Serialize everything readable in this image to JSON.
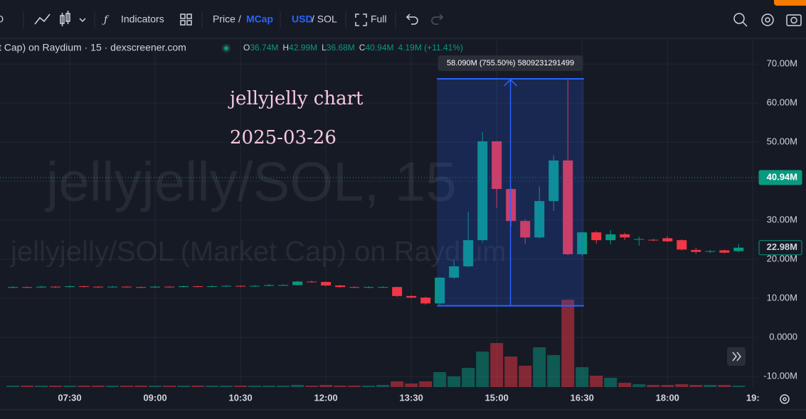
{
  "toolbar": {
    "interval": "D",
    "indicators": "Indicators",
    "price": "Price",
    "slash": "/",
    "mcap": "MCap",
    "usd": "USD",
    "sol": "/ SOL",
    "full": "Full"
  },
  "chart_data": {
    "type": "candlestick",
    "legend_title": "t Cap) on Raydium · 15 · dexscreener.com",
    "ohlc_legend": [
      {
        "key": "O",
        "value": "36.74M"
      },
      {
        "key": "H",
        "value": "42.99M"
      },
      {
        "key": "L",
        "value": "36.68M"
      },
      {
        "key": "C",
        "value": "40.94M"
      }
    ],
    "legend_change": "4.19M (+11.41%)",
    "annotations": [
      "jellyjelly chart",
      "2025-03-26"
    ],
    "watermark": [
      "jellyjelly/SOL, 15",
      "jellyjelly/SOL (Market Cap) on Raydium"
    ],
    "up_color": "#089981",
    "down_color": "#f23645",
    "x": [
      390,
      405,
      420,
      435,
      450,
      465,
      480,
      495,
      510,
      525,
      540,
      555,
      570,
      585,
      600,
      615,
      630,
      645,
      660,
      675,
      690,
      705,
      720,
      735,
      750,
      765,
      780,
      795,
      810,
      825,
      840,
      855,
      870,
      885,
      900,
      915,
      930,
      945,
      960,
      975,
      990,
      1005,
      1020,
      1035,
      1050,
      1065,
      1080,
      1095,
      1110,
      1125,
      1140,
      1155
    ],
    "open": [
      12.8,
      12.9,
      12.8,
      13.0,
      12.9,
      13.1,
      13.0,
      12.9,
      13.0,
      12.9,
      12.8,
      13.0,
      12.9,
      13.1,
      13.0,
      13.1,
      13.2,
      13.1,
      13.2,
      13.4,
      13.4,
      14.3,
      14.2,
      13.3,
      12.9,
      12.8,
      12.9,
      12.9,
      10.6,
      10.2,
      8.7,
      15.3,
      18.2,
      24.9,
      50.2,
      38.0,
      29.8,
      25.6,
      34.9,
      45.3,
      21.3,
      26.9,
      24.9,
      26.4,
      25.1,
      25.0,
      25.4,
      24.9,
      22.4,
      22.0,
      22.3,
      22.1
    ],
    "high": [
      13.1,
      13.0,
      13.2,
      13.1,
      13.3,
      13.2,
      13.1,
      13.2,
      13.1,
      13.0,
      13.2,
      13.1,
      13.3,
      13.2,
      13.3,
      13.4,
      13.3,
      13.4,
      13.6,
      13.6,
      14.5,
      14.5,
      14.4,
      13.5,
      13.1,
      13.1,
      13.1,
      13.0,
      10.8,
      10.4,
      15.5,
      19.8,
      32.2,
      52.5,
      50.3,
      38.2,
      30.2,
      38.7,
      46.7,
      66.2,
      27.0,
      27.2,
      27.5,
      26.8,
      25.8,
      25.3,
      25.9,
      25.1,
      23.0,
      22.4,
      22.5,
      23.9
    ],
    "low": [
      12.6,
      12.6,
      12.7,
      12.7,
      12.8,
      12.8,
      12.7,
      12.8,
      12.7,
      12.6,
      12.7,
      12.7,
      12.8,
      12.8,
      12.9,
      13.0,
      12.9,
      13.0,
      13.1,
      13.2,
      13.3,
      14.0,
      13.1,
      12.7,
      12.6,
      12.6,
      12.7,
      10.4,
      10.0,
      8.4,
      8.3,
      15.0,
      18.0,
      24.3,
      33.1,
      28.5,
      24.0,
      25.3,
      32.4,
      21.1,
      20.8,
      24.0,
      23.8,
      24.9,
      23.5,
      24.6,
      24.4,
      22.3,
      21.4,
      21.6,
      21.5,
      21.8
    ],
    "close": [
      12.9,
      12.8,
      13.0,
      12.9,
      13.1,
      13.0,
      12.9,
      13.0,
      12.9,
      12.8,
      13.0,
      12.9,
      13.1,
      13.0,
      13.1,
      13.2,
      13.1,
      13.2,
      13.4,
      13.4,
      14.3,
      14.2,
      13.3,
      12.9,
      12.8,
      12.9,
      12.9,
      10.6,
      10.2,
      8.7,
      15.3,
      18.2,
      24.9,
      50.2,
      38.0,
      29.8,
      25.6,
      34.9,
      45.3,
      21.3,
      26.9,
      24.9,
      26.4,
      25.6,
      25.2,
      24.9,
      24.6,
      22.5,
      21.9,
      22.1,
      21.7,
      22.98
    ],
    "volume": [
      2,
      2,
      2,
      2,
      2,
      2,
      2,
      2,
      2,
      2,
      2,
      2,
      2,
      2,
      2,
      2,
      2,
      2,
      2,
      2,
      3,
      2,
      3,
      2,
      2,
      2,
      3,
      8,
      5,
      8,
      21,
      15,
      27,
      50,
      62,
      43,
      30,
      56,
      45,
      123,
      28,
      16,
      13,
      6,
      4,
      3,
      3,
      4,
      3,
      3,
      3,
      2
    ],
    "xlim": [
      376.5,
      1175
    ],
    "xticks": [
      {
        "value": 450,
        "label": "07:30"
      },
      {
        "value": 540,
        "label": "09:00"
      },
      {
        "value": 630,
        "label": "10:30"
      },
      {
        "value": 720,
        "label": "12:00"
      },
      {
        "value": 810,
        "label": "13:30"
      },
      {
        "value": 900,
        "label": "15:00"
      },
      {
        "value": 990,
        "label": "16:30"
      },
      {
        "value": 1080,
        "label": "18:00"
      },
      {
        "value": 1170,
        "label": "19:"
      }
    ],
    "ylim": [
      -12.7,
      78.2
    ],
    "yticks": [
      {
        "value": -10,
        "label": "-10.00M"
      },
      {
        "value": 0,
        "label": "0.0000"
      },
      {
        "value": 10,
        "label": "10.00M"
      },
      {
        "value": 20,
        "label": "20.00M"
      },
      {
        "value": 30,
        "label": "30.00M"
      },
      {
        "value": 40,
        "label": "40.00M"
      },
      {
        "value": 50,
        "label": "50.00M"
      },
      {
        "value": 60,
        "label": "60.00M"
      },
      {
        "value": 70,
        "label": "70.00M"
      }
    ],
    "grid": true,
    "price_lines": [
      {
        "value": 40.94,
        "label": "40.94M",
        "style": "filled",
        "color": "#089981"
      },
      {
        "value": 22.98,
        "label": "22.98M",
        "style": "outline",
        "color": "#089981"
      }
    ],
    "measure": {
      "x_range": [
        837,
        992
      ],
      "y_range": [
        8.1,
        66.19
      ],
      "label": "58.090M (755.50%) 5809231291499",
      "color": "#2962ff"
    }
  }
}
